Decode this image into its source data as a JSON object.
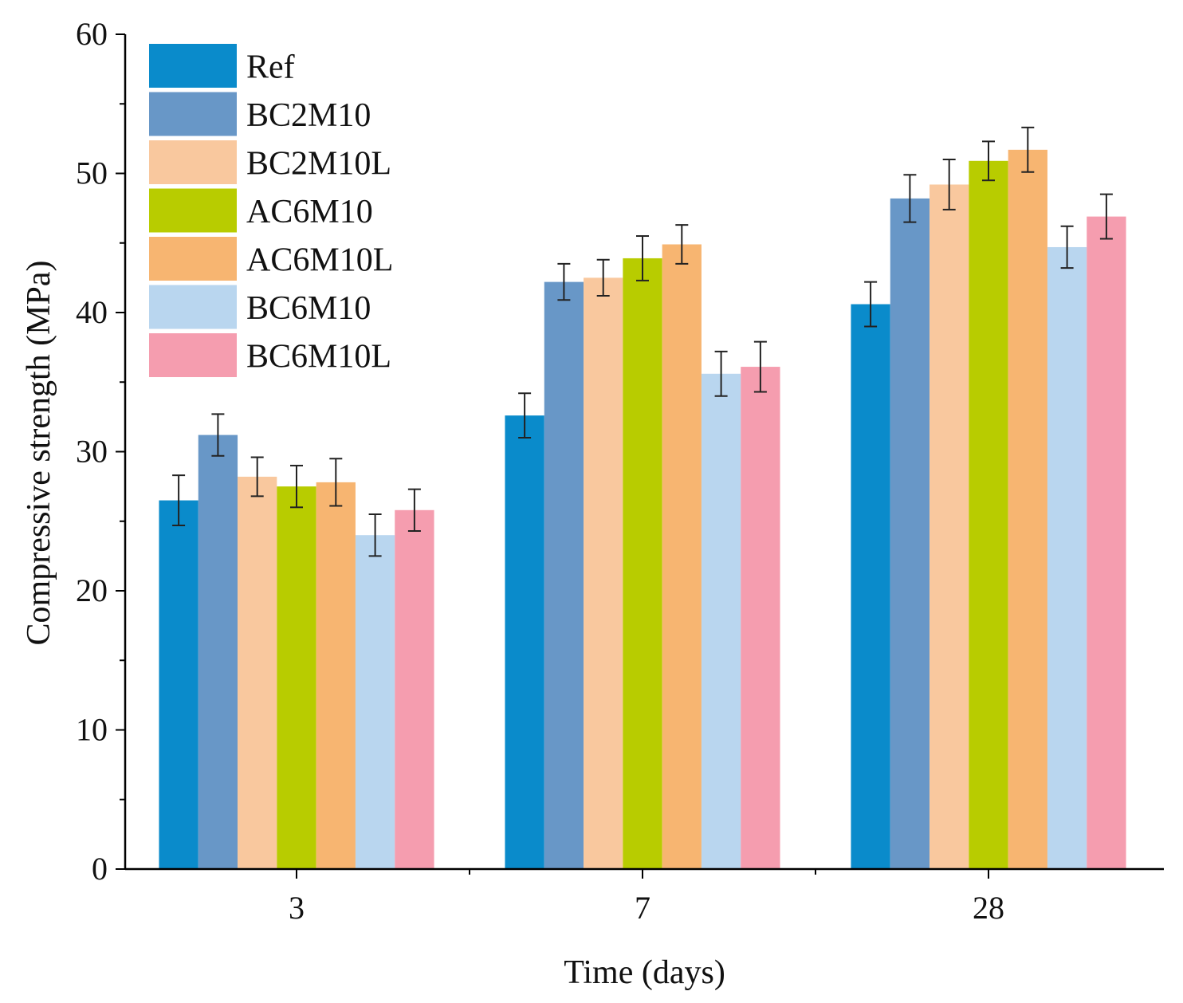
{
  "chart_data": {
    "type": "bar",
    "title": "",
    "xlabel": "Time (days)",
    "ylabel": "Compressive strength (MPa)",
    "ylim": [
      0,
      60
    ],
    "yticks": [
      0,
      10,
      20,
      30,
      40,
      50,
      60
    ],
    "categories": [
      "3",
      "7",
      "28"
    ],
    "legend_position": "top-left",
    "grid": false,
    "series": [
      {
        "name": "Ref",
        "color": "#0a8bcb",
        "values": [
          26.5,
          32.6,
          40.6
        ],
        "errors": [
          1.8,
          1.6,
          1.6
        ]
      },
      {
        "name": "BC2M10",
        "color": "#6897c7",
        "values": [
          31.2,
          42.2,
          48.2
        ],
        "errors": [
          1.5,
          1.3,
          1.7
        ]
      },
      {
        "name": "BC2M10L",
        "color": "#f9c89e",
        "values": [
          28.2,
          42.5,
          49.2
        ],
        "errors": [
          1.4,
          1.3,
          1.8
        ]
      },
      {
        "name": "AC6M10",
        "color": "#b8cc00",
        "values": [
          27.5,
          43.9,
          50.9
        ],
        "errors": [
          1.5,
          1.6,
          1.4
        ]
      },
      {
        "name": "AC6M10L",
        "color": "#f7b571",
        "values": [
          27.8,
          44.9,
          51.7
        ],
        "errors": [
          1.7,
          1.4,
          1.6
        ]
      },
      {
        "name": "BC6M10",
        "color": "#b9d6ef",
        "values": [
          24.0,
          35.6,
          44.7
        ],
        "errors": [
          1.5,
          1.6,
          1.5
        ]
      },
      {
        "name": "BC6M10L",
        "color": "#f59daf",
        "values": [
          25.8,
          36.1,
          46.9
        ],
        "errors": [
          1.5,
          1.8,
          1.6
        ]
      }
    ]
  }
}
